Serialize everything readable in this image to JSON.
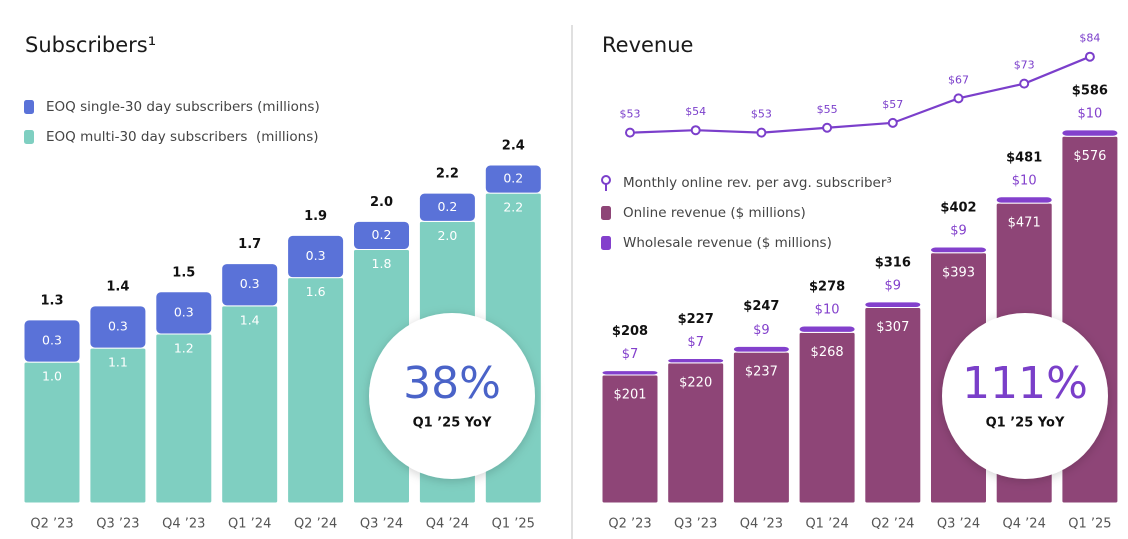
{
  "chart_data": [
    {
      "type": "bar",
      "title": "Subscribers¹",
      "stack": "top-first",
      "categories": [
        "Q2 ’23",
        "Q3 ’23",
        "Q4 ’23",
        "Q1 ’24",
        "Q2 ’24",
        "Q3 ’24",
        "Q4 ’24",
        "Q1 ’25"
      ],
      "series": [
        {
          "name": "EOQ single-30 day subscribers (millions)",
          "color": "#5a72d8",
          "values": [
            0.3,
            0.3,
            0.3,
            0.3,
            0.3,
            0.2,
            0.2,
            0.2
          ]
        },
        {
          "name": "EOQ multi-30 day subscribers  (millions)",
          "color": "#7fcfc1",
          "values": [
            1.0,
            1.1,
            1.2,
            1.4,
            1.6,
            1.8,
            2.0,
            2.2
          ],
          "value_labels": [
            "1.0",
            "1.1",
            "1.2",
            "1.4",
            "1.6",
            "1.8",
            "2.0",
            "2.2"
          ]
        }
      ],
      "totals": {
        "values": [
          1.3,
          1.4,
          1.5,
          1.7,
          1.9,
          2.0,
          2.2,
          2.4
        ],
        "value_labels": [
          "1.3",
          "1.4",
          "1.5",
          "1.7",
          "1.9",
          "2.0",
          "2.2",
          "2.4"
        ]
      },
      "ylim": [
        0,
        2.4
      ],
      "badge": {
        "text": "38%",
        "subtext": "Q1 ’25 YoY",
        "color": "#4a63c8"
      }
    },
    {
      "type": "bar",
      "title": "Revenue",
      "stack": "bottom-first",
      "categories": [
        "Q2 ’23",
        "Q3 ’23",
        "Q4 ’23",
        "Q1 ’24",
        "Q2 ’24",
        "Q3 ’24",
        "Q4 ’24",
        "Q1 ’25"
      ],
      "series": [
        {
          "name": "Monthly online rev. per avg. subscriber³",
          "type": "line",
          "axis": "y2",
          "color": "#7b3fcb",
          "values": [
            53,
            54,
            53,
            55,
            57,
            67,
            73,
            84
          ],
          "value_labels": [
            "$53",
            "$54",
            "$53",
            "$55",
            "$57",
            "$67",
            "$73",
            "$84"
          ]
        },
        {
          "name": "Online revenue ($ millions)",
          "color": "#8e4577",
          "values": [
            201,
            220,
            237,
            268,
            307,
            393,
            471,
            576
          ],
          "value_labels": [
            "$201",
            "$220",
            "$237",
            "$268",
            "$307",
            "$393",
            "$471",
            "$576"
          ]
        },
        {
          "name": "Wholesale revenue ($ millions)",
          "color": "#8340cc",
          "values": [
            7,
            7,
            9,
            10,
            9,
            9,
            10,
            10
          ],
          "value_labels": [
            "$7",
            "$7",
            "$9",
            "$10",
            "$9",
            "$9",
            "$10",
            "$10"
          ]
        }
      ],
      "totals": {
        "values": [
          208,
          227,
          247,
          278,
          316,
          402,
          481,
          586
        ],
        "value_labels": [
          "$208",
          "$227",
          "$247",
          "$278",
          "$316",
          "$402",
          "$481",
          "$586"
        ]
      },
      "ylim": [
        0,
        600
      ],
      "y2lim": [
        50,
        90
      ],
      "badge": {
        "text": "111%",
        "subtext": "Q1 ’25 YoY",
        "color": "#7a3fc9"
      }
    }
  ]
}
